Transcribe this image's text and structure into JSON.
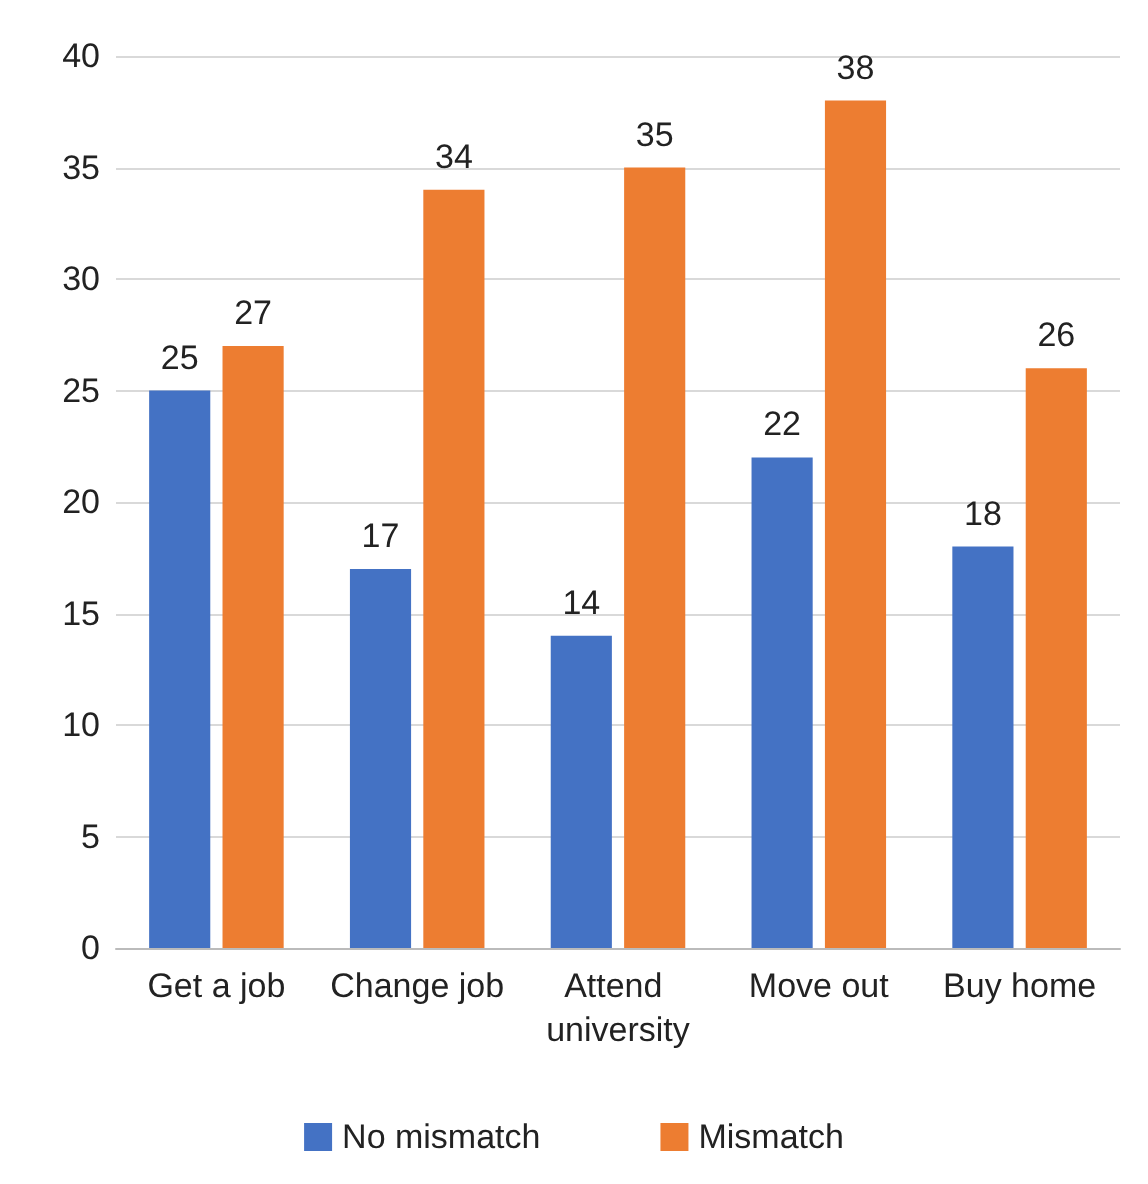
{
  "chart_data": {
    "type": "bar",
    "categories": [
      "Get a job",
      "Change job",
      "Attend university",
      "Move out",
      "Buy home"
    ],
    "series": [
      {
        "name": "No mismatch",
        "color": "#4472c4",
        "values": [
          25,
          17,
          14,
          22,
          18
        ]
      },
      {
        "name": "Mismatch",
        "color": "#ed7d31",
        "values": [
          27,
          34,
          35,
          38,
          26
        ]
      }
    ],
    "ylim": [
      0,
      40
    ],
    "yticks": [
      0,
      5,
      10,
      15,
      20,
      25,
      30,
      35,
      40
    ],
    "grid": "y",
    "legend": "bottom",
    "data_labels": true
  }
}
